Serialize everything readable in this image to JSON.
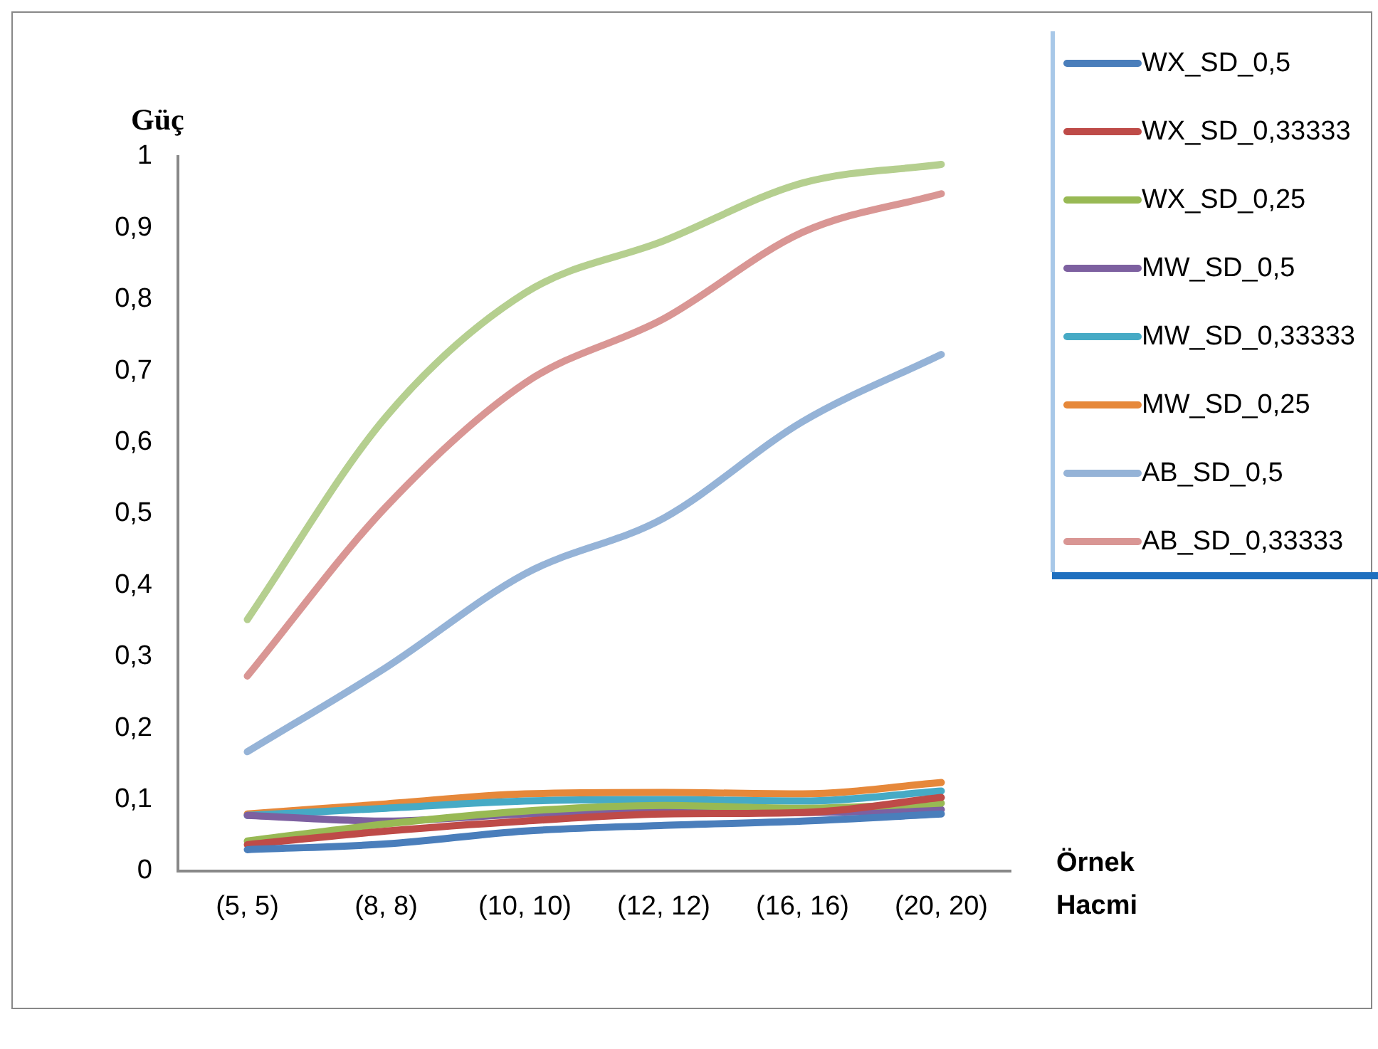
{
  "chart_data": {
    "type": "line",
    "ylabel": "Güç",
    "xlabel": "Örnek Hacmi",
    "categories": [
      "(5, 5)",
      "(8, 8)",
      "(10, 10)",
      "(12, 12)",
      "(16, 16)",
      "(20, 20)"
    ],
    "ylim": [
      0,
      1
    ],
    "yticks": [
      0,
      {
        "value": 0.1,
        "label": "0,1"
      },
      {
        "value": 0.2,
        "label": "0,2"
      },
      {
        "value": 0.3,
        "label": "0,3"
      },
      {
        "value": 0.4,
        "label": "0,4"
      },
      {
        "value": 0.5,
        "label": "0,5"
      },
      {
        "value": 0.6,
        "label": "0,6"
      },
      {
        "value": 0.7,
        "label": "0,7"
      },
      {
        "value": 0.8,
        "label": "0,8"
      },
      {
        "value": 0.9,
        "label": "0,9"
      },
      1
    ],
    "legend": "right",
    "series": [
      {
        "name": "WX_SD_0,5",
        "color": "#4a7ebb",
        "values": [
          0.03,
          0.038,
          0.056,
          0.064,
          0.07,
          0.08
        ]
      },
      {
        "name": "WX_SD_0,33333",
        "color": "#be4b48",
        "values": [
          0.037,
          0.056,
          0.07,
          0.08,
          0.082,
          0.103
        ]
      },
      {
        "name": "WX_SD_0,25",
        "color": "#98b954",
        "values": [
          0.042,
          0.066,
          0.084,
          0.092,
          0.088,
          0.095
        ]
      },
      {
        "name": "MW_SD_0,5",
        "color": "#7d60a0",
        "values": [
          0.078,
          0.07,
          0.08,
          0.084,
          0.082,
          0.086
        ]
      },
      {
        "name": "MW_SD_0,33333",
        "color": "#46aac5",
        "values": [
          0.078,
          0.088,
          0.098,
          0.1,
          0.098,
          0.112
        ]
      },
      {
        "name": "MW_SD_0,25",
        "color": "#e6883a",
        "values": [
          0.08,
          0.094,
          0.108,
          0.11,
          0.108,
          0.124
        ]
      },
      {
        "name": "AB_SD_0,5",
        "color": "#95b3d7",
        "values": [
          0.167,
          0.285,
          0.416,
          0.494,
          0.629,
          0.723
        ]
      },
      {
        "name": "AB_SD_0,33333",
        "color": "#d99694",
        "values": [
          0.273,
          0.51,
          0.683,
          0.773,
          0.894,
          0.948
        ]
      },
      {
        "color": "#b5cf8f",
        "values": [
          0.352,
          0.636,
          0.809,
          0.882,
          0.963,
          0.989
        ]
      }
    ]
  }
}
